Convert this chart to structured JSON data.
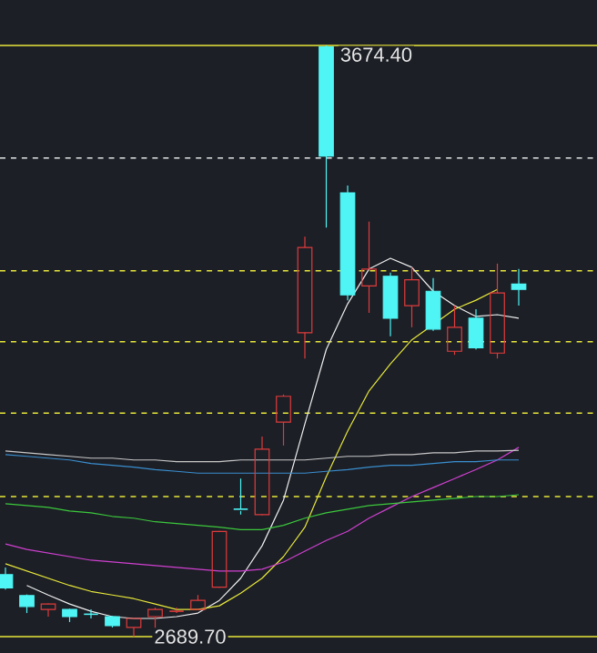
{
  "chart_data": {
    "type": "candlestick",
    "categories": [
      null,
      null,
      null,
      null,
      null,
      null,
      null,
      null,
      null,
      null,
      null,
      null,
      null,
      null,
      null,
      null,
      null,
      null,
      null,
      null,
      null,
      null,
      null,
      null,
      null
    ],
    "ohlc": [
      [
        2793,
        2805,
        2768,
        2771
      ],
      [
        2758,
        2760,
        2729,
        2740
      ],
      [
        2735,
        2745,
        2723,
        2744
      ],
      [
        2735,
        2736,
        2714,
        2723
      ],
      [
        2727,
        2735,
        2720,
        2726
      ],
      [
        2723,
        2724,
        2705,
        2708
      ],
      [
        2705,
        2721,
        2689.7,
        2720
      ],
      [
        2723,
        2738,
        2702,
        2735
      ],
      [
        2732,
        2738,
        2729,
        2735
      ],
      [
        2735,
        2759,
        2734,
        2750
      ],
      [
        2772,
        2866,
        2771,
        2865
      ],
      [
        2902,
        2953,
        2893,
        2899
      ],
      [
        2893,
        3023,
        2892,
        3002
      ],
      [
        3047,
        3093,
        3008,
        3090
      ],
      [
        3196,
        3356,
        3153,
        3338
      ],
      [
        3672,
        3674.4,
        3371,
        3490
      ],
      [
        3429,
        3441,
        3250,
        3259
      ],
      [
        3274,
        3381,
        3229,
        3302
      ],
      [
        3290,
        3296,
        3190,
        3220
      ],
      [
        3241,
        3305,
        3205,
        3284
      ],
      [
        3265,
        3287,
        3199,
        3202
      ],
      [
        3165,
        3241,
        3159,
        3205
      ],
      [
        3220,
        3235,
        3168,
        3171
      ],
      [
        3162,
        3311,
        3153,
        3262
      ],
      [
        3277,
        3302,
        3241,
        3268
      ]
    ],
    "colors": [
      "#4ff5f5",
      "#4ff5f5",
      "#e03c3c",
      "#4ff5f5",
      "#4ff5f5",
      "#4ff5f5",
      "#e03c3c",
      "#e03c3c",
      "#e03c3c",
      "#e03c3c",
      "#e03c3c",
      "#4ff5f5",
      "#e03c3c",
      "#e03c3c",
      "#e03c3c",
      "#4ff5f5",
      "#4ff5f5",
      "#e03c3c",
      "#4ff5f5",
      "#e03c3c",
      "#4ff5f5",
      "#e03c3c",
      "#4ff5f5",
      "#e03c3c",
      "#4ff5f5"
    ],
    "series": [
      {
        "type": "line",
        "color": "#f0f0f0",
        "values": [
          null,
          2775,
          2759,
          2744,
          2732,
          2723,
          2720,
          2720,
          2723,
          2729,
          2750,
          2787,
          2841,
          2917,
          3044,
          3168,
          3244,
          3302,
          3320,
          3305,
          3265,
          3241,
          3223,
          3226,
          3220
        ]
      },
      {
        "type": "line",
        "color": "#e8e83a",
        "values": [
          2811,
          2799,
          2787,
          2775,
          2765,
          2759,
          2753,
          2744,
          2735,
          2735,
          2741,
          2762,
          2787,
          2823,
          2872,
          2956,
          3032,
          3099,
          3144,
          3184,
          null,
          3235,
          3250,
          3268,
          null
        ]
      },
      {
        "type": "line",
        "color": "#d040d0",
        "values": [
          2844,
          2835,
          2829,
          2823,
          2817,
          2814,
          2811,
          2808,
          2805,
          2802,
          2799,
          2799,
          2802,
          2814,
          2832,
          2850,
          2865,
          2887,
          2905,
          2923,
          2938,
          2953,
          2968,
          2984,
          3005
        ]
      },
      {
        "type": "line",
        "color": "#3cc83c",
        "values": [
          2911,
          2908,
          2905,
          2899,
          2896,
          2890,
          2887,
          2881,
          2878,
          2875,
          2872,
          2868,
          2868,
          2875,
          2887,
          2896,
          2902,
          2908,
          2911,
          2914,
          2917,
          2920,
          2923,
          2923,
          2926
        ]
      },
      {
        "type": "line",
        "color": "#3a8fd0",
        "values": [
          2993,
          2990,
          2987,
          2984,
          2978,
          2975,
          2972,
          2968,
          2965,
          2962,
          2962,
          2962,
          2962,
          2962,
          2962,
          2965,
          2968,
          2972,
          2975,
          2975,
          2978,
          2981,
          2981,
          2984,
          2984
        ]
      },
      {
        "type": "line",
        "color": "#c8c8c8",
        "values": [
          2999,
          2996,
          2993,
          2990,
          2987,
          2987,
          2984,
          2984,
          2981,
          2981,
          2981,
          2984,
          2984,
          2984,
          2984,
          2987,
          2990,
          2990,
          2993,
          2993,
          2996,
          2996,
          2999,
          2999,
          3000
        ]
      }
    ],
    "ref_lines": [
      {
        "axis": "y",
        "value": 3674.4,
        "color": "#e8e83a",
        "line_style": "solid"
      },
      {
        "axis": "y",
        "value": 3487,
        "color": "#e6e6e6",
        "line_style": "dashed"
      },
      {
        "axis": "y",
        "value": 3299,
        "color": "#e8e83a",
        "line_style": "dashed"
      },
      {
        "axis": "y",
        "value": 3181,
        "color": "#e8e83a",
        "line_style": "dashed"
      },
      {
        "axis": "y",
        "value": 3062,
        "color": "#e8e83a",
        "line_style": "dashed"
      },
      {
        "axis": "y",
        "value": 2923,
        "color": "#e8e83a",
        "line_style": "dashed"
      },
      {
        "axis": "y",
        "value": 2689.7,
        "color": "#e8e83a",
        "line_style": "solid"
      }
    ],
    "annotations": [
      {
        "text": "3674.40",
        "y": 3674.4
      },
      {
        "text": "2689.70",
        "y": 2689.7
      }
    ]
  }
}
